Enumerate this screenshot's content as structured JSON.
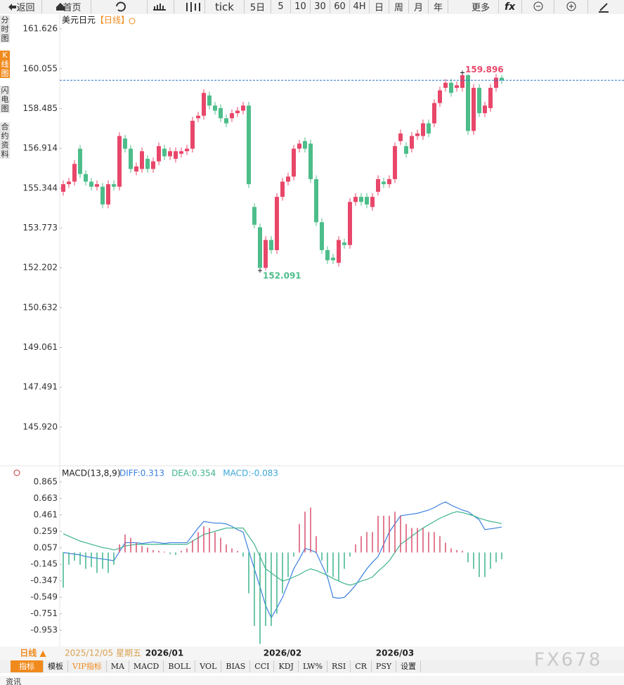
{
  "toolbar": {
    "back": "返回",
    "home": "首页",
    "tick": "tick",
    "periods": [
      "5日",
      "5",
      "10",
      "30",
      "60",
      "4H",
      "日",
      "周",
      "月",
      "年"
    ],
    "more": "更多"
  },
  "side_tabs": [
    "分时图",
    "K线图",
    "闪电图",
    "合约资料"
  ],
  "symbol": "美元日元",
  "period_tag": "【日线】",
  "chart_data": [
    {
      "type": "candlestick",
      "up_color": "#e8476a",
      "down_color": "#4dbd8a",
      "last_line_color": "#2a6fc9",
      "categories": [
        null,
        null,
        null,
        null,
        null,
        null,
        null,
        null,
        null,
        null,
        null,
        null,
        null,
        null,
        null,
        null,
        null,
        null,
        "2026/01",
        null,
        null,
        null,
        null,
        null,
        null,
        null,
        null,
        null,
        null,
        null,
        null,
        null,
        null,
        null,
        null,
        null,
        null,
        null,
        null,
        "2026/02",
        null,
        null,
        null,
        null,
        null,
        null,
        null,
        null,
        null,
        null,
        null,
        null,
        null,
        null,
        null,
        null,
        null,
        null,
        null,
        "2026/03",
        null,
        null,
        null,
        null,
        null,
        null,
        null,
        null,
        null,
        null,
        null,
        null,
        null,
        null,
        null,
        null,
        null,
        null,
        null
      ],
      "open": [
        155.2,
        155.5,
        155.6,
        156.9,
        155.9,
        155.6,
        155.4,
        155.4,
        154.7,
        155.5,
        155.4,
        157.3,
        156.9,
        156.0,
        156.1,
        156.5,
        156.1,
        156.4,
        156.9,
        156.6,
        156.5,
        156.7,
        156.8,
        156.9,
        158.1,
        158.2,
        159.0,
        158.6,
        158.5,
        158.1,
        158.1,
        158.3,
        158.4,
        158.6,
        154.6,
        153.8,
        152.2,
        153.3,
        152.9,
        155.0,
        155.6,
        155.8,
        156.9,
        157.2,
        157.1,
        155.7,
        154.0,
        152.9,
        152.6,
        152.4,
        153.2,
        153.1,
        154.8,
        155.0,
        155.0,
        154.6,
        155.2,
        155.6,
        155.5,
        155.7,
        157.2,
        157.0,
        156.9,
        157.4,
        157.4,
        157.9,
        157.9,
        158.7,
        159.3,
        159.5,
        159.3,
        159.3,
        159.8,
        157.6,
        159.3,
        158.3,
        158.5,
        159.3,
        159.7
      ],
      "high": [
        155.65,
        155.75,
        156.45,
        157.05,
        156.05,
        155.75,
        155.65,
        155.55,
        155.65,
        155.65,
        157.55,
        157.45,
        157.05,
        156.35,
        156.95,
        156.65,
        156.55,
        157.15,
        157.05,
        156.95,
        156.95,
        156.95,
        157.05,
        158.15,
        158.35,
        159.25,
        159.15,
        158.75,
        158.65,
        158.25,
        158.45,
        158.55,
        158.75,
        158.75,
        154.75,
        153.95,
        153.45,
        153.45,
        155.15,
        155.75,
        155.95,
        157.05,
        157.25,
        157.35,
        157.25,
        155.85,
        154.15,
        153.05,
        152.75,
        153.45,
        153.35,
        154.95,
        155.15,
        155.15,
        155.15,
        155.15,
        155.85,
        155.75,
        155.85,
        157.15,
        157.65,
        157.15,
        157.55,
        157.65,
        158.05,
        158.05,
        158.85,
        159.35,
        159.65,
        159.65,
        159.55,
        159.896,
        159.85,
        159.45,
        159.45,
        158.75,
        159.45,
        159.85,
        159.8
      ],
      "low": [
        155.05,
        155.35,
        155.45,
        155.75,
        155.45,
        155.25,
        155.25,
        154.55,
        154.55,
        155.25,
        155.25,
        156.75,
        155.95,
        155.85,
        155.95,
        155.95,
        155.95,
        156.25,
        156.45,
        156.45,
        156.35,
        156.55,
        156.65,
        156.75,
        157.95,
        158.05,
        158.45,
        158.25,
        157.95,
        157.75,
        157.95,
        158.15,
        158.25,
        155.35,
        153.75,
        152.091,
        152.1,
        152.75,
        152.75,
        154.85,
        155.45,
        155.65,
        156.75,
        156.75,
        155.55,
        153.85,
        152.75,
        152.35,
        152.35,
        152.25,
        152.95,
        152.95,
        154.65,
        154.65,
        154.55,
        154.45,
        155.05,
        155.35,
        155.35,
        155.55,
        157.05,
        156.55,
        156.75,
        157.25,
        157.25,
        157.35,
        157.75,
        158.55,
        159.15,
        158.95,
        159.15,
        159.15,
        157.45,
        157.45,
        158.15,
        158.15,
        158.35,
        159.15,
        159.45
      ],
      "close": [
        155.5,
        155.6,
        156.3,
        155.9,
        155.6,
        155.4,
        155.5,
        154.7,
        155.5,
        155.4,
        157.4,
        156.9,
        156.1,
        156.2,
        156.8,
        156.1,
        156.4,
        157.0,
        156.6,
        156.8,
        156.8,
        156.8,
        156.9,
        158.0,
        158.2,
        159.1,
        158.6,
        158.4,
        158.1,
        157.9,
        158.3,
        158.4,
        158.6,
        155.5,
        153.9,
        152.2,
        153.3,
        152.9,
        155.0,
        155.6,
        155.8,
        156.9,
        157.1,
        156.9,
        155.7,
        154.0,
        152.9,
        152.5,
        152.5,
        153.3,
        153.1,
        154.8,
        155.0,
        154.8,
        154.7,
        155.0,
        155.7,
        155.5,
        155.7,
        157.0,
        157.5,
        156.7,
        157.4,
        157.5,
        157.9,
        157.5,
        158.7,
        159.2,
        159.5,
        159.1,
        159.4,
        159.8,
        157.6,
        159.3,
        158.3,
        158.6,
        159.3,
        159.7,
        159.6
      ],
      "ylim": [
        144.42,
        162.21
      ],
      "yticks": [
        161.626,
        160.055,
        158.485,
        156.914,
        155.344,
        153.773,
        152.202,
        150.632,
        149.061,
        147.491,
        {
          "value": 145.92,
          "label": "145.920"
        }
      ]
    },
    {
      "type": "macd",
      "title": "MACD(13,8,9)",
      "ylim": [
        -1.15,
        1.045
      ],
      "yticks": [
        0.865,
        0.663,
        0.461,
        0.259,
        0.057,
        -0.145,
        -0.347,
        -0.549,
        -0.751,
        -0.953
      ],
      "series": [
        {
          "name": "DIFF:0.313",
          "kind": "line",
          "color": "#3a7fe0",
          "values": [
            0.0,
            -0.01,
            -0.02,
            -0.03,
            -0.05,
            -0.06,
            -0.07,
            -0.08,
            -0.09,
            -0.1,
            0.01,
            0.12,
            0.12,
            0.12,
            0.11,
            0.12,
            0.13,
            0.12,
            0.11,
            0.12,
            0.12,
            0.12,
            0.12,
            0.21,
            0.3,
            0.38,
            0.37,
            0.36,
            0.36,
            0.35,
            0.32,
            0.28,
            0.25,
            0.02,
            -0.2,
            -0.42,
            -0.65,
            -0.8,
            -0.68,
            -0.55,
            -0.38,
            -0.2,
            -0.08,
            0.05,
            0.03,
            0.0,
            -0.15,
            -0.3,
            -0.55,
            -0.56,
            -0.55,
            -0.48,
            -0.4,
            -0.3,
            -0.2,
            -0.12,
            -0.05,
            0.1,
            0.25,
            0.35,
            0.45,
            0.46,
            0.47,
            0.48,
            0.5,
            0.52,
            0.55,
            0.59,
            0.62,
            0.58,
            0.55,
            0.52,
            0.5,
            0.45,
            0.4,
            0.28,
            0.29,
            0.3,
            0.313
          ]
        },
        {
          "name": "DEA:0.354",
          "kind": "line",
          "color": "#3cb48a",
          "values": [
            0.23,
            0.2,
            0.17,
            0.14,
            0.12,
            0.1,
            0.08,
            0.06,
            0.05,
            0.03,
            0.05,
            0.08,
            0.09,
            0.1,
            0.1,
            0.1,
            0.1,
            0.1,
            0.1,
            0.1,
            0.1,
            0.1,
            0.1,
            0.14,
            0.18,
            0.22,
            0.24,
            0.26,
            0.28,
            0.3,
            0.3,
            0.3,
            0.3,
            0.2,
            0.1,
            -0.05,
            -0.2,
            -0.25,
            -0.3,
            -0.35,
            -0.33,
            -0.3,
            -0.27,
            -0.23,
            -0.2,
            -0.22,
            -0.25,
            -0.28,
            -0.32,
            -0.35,
            -0.38,
            -0.4,
            -0.38,
            -0.35,
            -0.33,
            -0.3,
            -0.23,
            -0.17,
            -0.1,
            0.0,
            0.1,
            0.15,
            0.2,
            0.25,
            0.3,
            0.34,
            0.38,
            0.42,
            0.45,
            0.48,
            0.5,
            0.49,
            0.47,
            0.45,
            0.42,
            0.4,
            0.38,
            0.37,
            0.354
          ]
        },
        {
          "name": "MACD:-0.083",
          "kind": "histogram",
          "color": "#3aa8d8",
          "up_color": "#d9506e",
          "down_color": "#3cb48a",
          "values": [
            -0.43,
            -0.15,
            -0.1,
            -0.15,
            -0.2,
            -0.18,
            -0.25,
            -0.2,
            -0.25,
            -0.15,
            0.1,
            0.22,
            0.18,
            0.12,
            0.08,
            0.06,
            0.03,
            0.02,
            0.01,
            -0.02,
            -0.03,
            0.02,
            0.05,
            0.15,
            0.25,
            0.32,
            0.3,
            0.25,
            0.18,
            0.1,
            0.05,
            0.02,
            -0.05,
            -0.5,
            -0.9,
            -1.12,
            -0.9,
            -0.9,
            -0.75,
            -0.5,
            -0.3,
            -0.05,
            0.35,
            0.5,
            0.55,
            0.2,
            -0.1,
            -0.25,
            -0.3,
            -0.35,
            -0.2,
            -0.05,
            0.1,
            0.2,
            0.25,
            0.25,
            0.45,
            0.45,
            0.45,
            0.5,
            0.45,
            0.35,
            0.3,
            0.3,
            0.3,
            0.25,
            0.25,
            0.2,
            0.12,
            0.05,
            0.03,
            0.02,
            -0.12,
            -0.2,
            -0.3,
            -0.3,
            -0.2,
            -0.12,
            -0.083
          ]
        }
      ]
    }
  ],
  "footer": {
    "period_button": "日线 ▲",
    "cursor_date": "2025/12/05 星期五"
  },
  "indicator_tabs": [
    "指标",
    "模板",
    "VIP指标",
    "MA",
    "MACD",
    "BOLL",
    "VOL",
    "BIAS",
    "CCI",
    "KDJ",
    "LW%",
    "RSI",
    "CR",
    "PSY",
    "设置"
  ],
  "watermark": "FX678",
  "bottom_tab": "资讯"
}
